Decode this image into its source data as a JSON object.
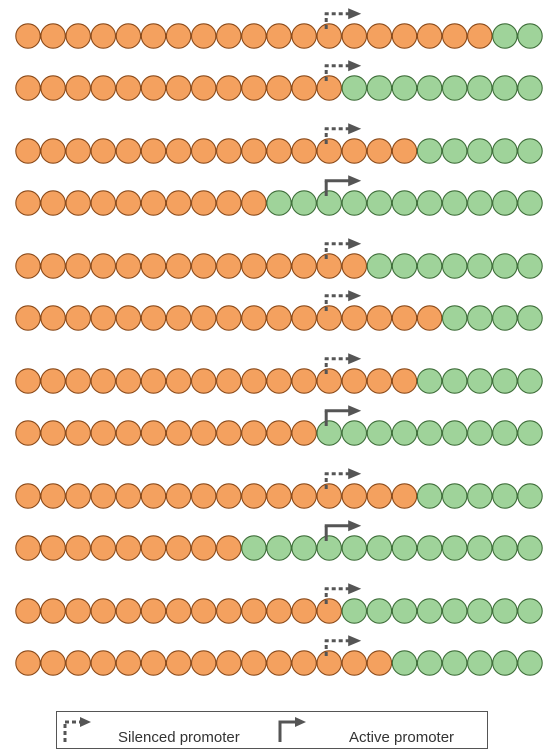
{
  "colors": {
    "silenced_fill": "#f4a15f",
    "silenced_stroke": "#8a4a1a",
    "active_fill": "#9fd39a",
    "active_stroke": "#3f6e3a",
    "arrow": "#555555"
  },
  "nodes_per_row": 21,
  "groups": [
    {
      "rows": [
        {
          "green_from": 19,
          "promoter": "silenced"
        },
        {
          "green_from": 13,
          "promoter": "silenced"
        }
      ]
    },
    {
      "rows": [
        {
          "green_from": 16,
          "promoter": "silenced"
        },
        {
          "green_from": 10,
          "promoter": "active"
        }
      ]
    },
    {
      "rows": [
        {
          "green_from": 14,
          "promoter": "silenced"
        },
        {
          "green_from": 17,
          "promoter": "silenced"
        }
      ]
    },
    {
      "rows": [
        {
          "green_from": 16,
          "promoter": "silenced"
        },
        {
          "green_from": 12,
          "promoter": "active"
        }
      ]
    },
    {
      "rows": [
        {
          "green_from": 16,
          "promoter": "silenced"
        },
        {
          "green_from": 9,
          "promoter": "active"
        }
      ]
    },
    {
      "rows": [
        {
          "green_from": 13,
          "promoter": "silenced"
        },
        {
          "green_from": 15,
          "promoter": "silenced"
        }
      ]
    }
  ],
  "legend": {
    "silenced_label": "Silenced promoter",
    "active_label": "Active promoter"
  }
}
